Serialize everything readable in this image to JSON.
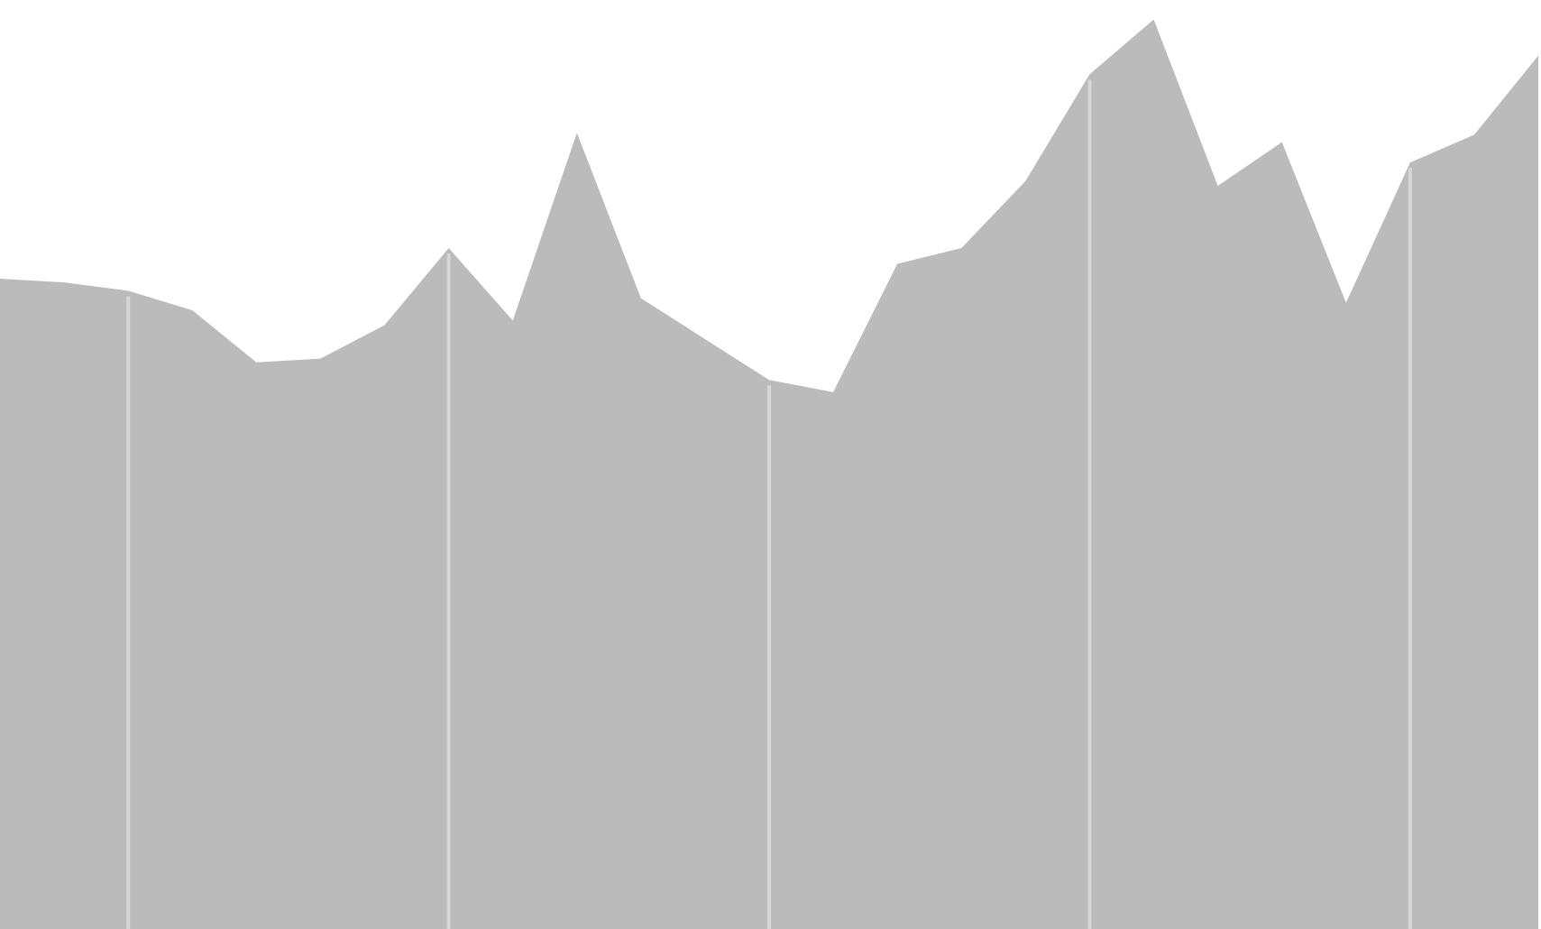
{
  "chart_data": {
    "type": "area",
    "x": [
      0,
      1,
      2,
      3,
      4,
      5,
      6,
      7,
      8,
      9,
      10,
      11,
      12,
      13,
      14,
      15,
      16,
      17,
      18,
      19,
      20,
      21,
      22,
      23,
      24
    ],
    "series": [
      {
        "values": [
          70.0,
          69.6,
          68.7,
          66.6,
          61.0,
          61.4,
          65.0,
          73.3,
          65.5,
          85.7,
          67.9,
          63.5,
          59.1,
          57.8,
          71.6,
          73.3,
          80.5,
          92.0,
          97.9,
          80.0,
          84.7,
          67.4,
          82.5,
          85.5,
          94.0
        ]
      }
    ],
    "title": "",
    "xlabel": "",
    "ylabel": "",
    "xlim": [
      0,
      24
    ],
    "ylim": [
      0,
      100
    ],
    "gridlines_x": [
      2,
      7,
      12,
      17,
      22
    ],
    "grid": "vertical",
    "legend": "none",
    "colors": {
      "area_fill": "#bbbbbb",
      "gridline": "#d6d6d6",
      "background": "#ffffff"
    }
  }
}
